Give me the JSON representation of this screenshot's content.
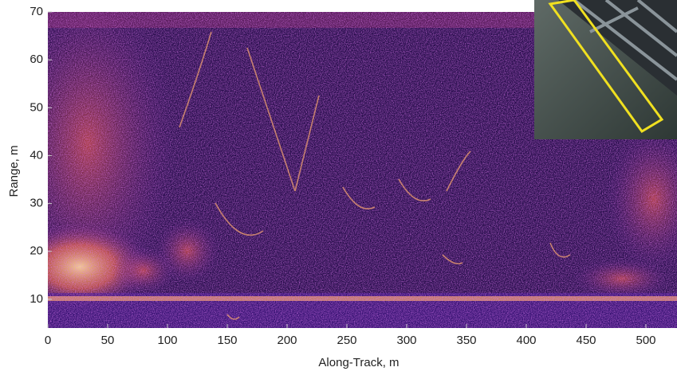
{
  "chart_data": {
    "type": "image",
    "xlabel": "Along-Track, m",
    "ylabel": "Range, m",
    "xlim": [
      0,
      526
    ],
    "ylim": [
      4,
      70
    ],
    "xticks": [
      0,
      50,
      100,
      150,
      200,
      250,
      300,
      350,
      400,
      450,
      500
    ],
    "yticks": [
      10,
      20,
      30,
      40,
      50,
      60,
      70
    ]
  }
}
